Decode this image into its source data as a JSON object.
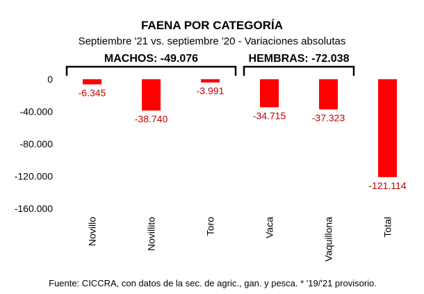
{
  "chart_data": {
    "type": "bar",
    "title": "FAENA POR CATEGORÍA",
    "subtitle": "Septiembre '21 vs. septiembre '20 - Variaciones absolutas",
    "categories": [
      "Novillo",
      "Novillito",
      "Toro",
      "Vaca",
      "Vaquillona",
      "Total"
    ],
    "values": [
      -6345,
      -38740,
      -3991,
      -34715,
      -37323,
      -121114
    ],
    "data_labels": [
      "-6.345",
      "-38.740",
      "-3.991",
      "-34.715",
      "-37.323",
      "-121.114"
    ],
    "y_ticks": [
      {
        "value": 0,
        "label": "0"
      },
      {
        "value": -40000,
        "label": "-40.000"
      },
      {
        "value": -80000,
        "label": "-80.000"
      },
      {
        "value": -120000,
        "label": "-120.000"
      },
      {
        "value": -160000,
        "label": "-160.000"
      }
    ],
    "ylim": [
      -160000,
      0
    ],
    "grid": false,
    "bar_color": "#ff0000",
    "label_color": "#c00000",
    "groups": [
      {
        "label": "MACHOS: -49.076",
        "categories": [
          "Novillo",
          "Novillito",
          "Toro"
        ]
      },
      {
        "label": "HEMBRAS: -72.038",
        "categories": [
          "Vaca",
          "Vaquillona"
        ]
      }
    ],
    "source": "Fuente: CICCRA, con datos de la sec. de agric., gan. y pesca. * '19/'21 provisorio."
  }
}
